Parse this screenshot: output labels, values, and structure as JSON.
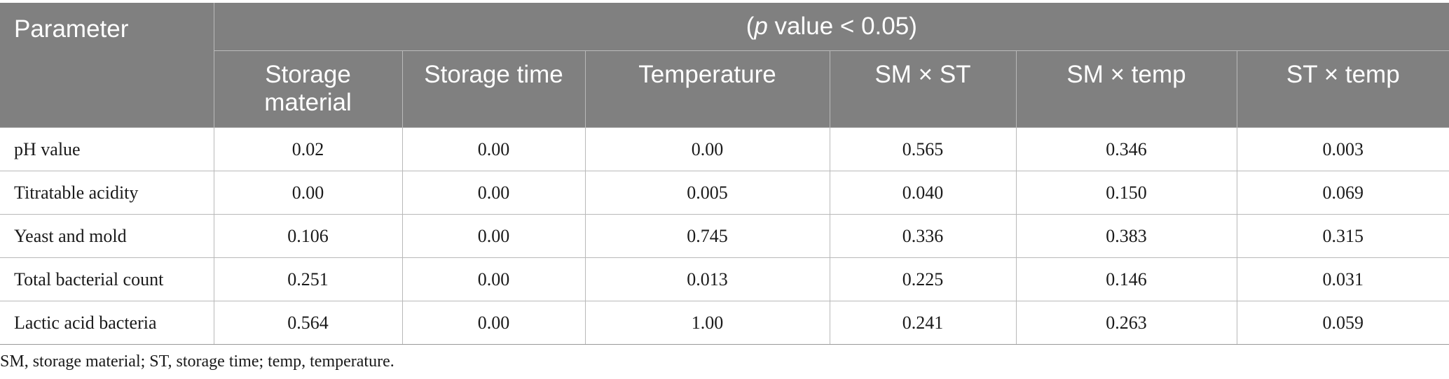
{
  "table": {
    "param_header": "Parameter",
    "group_header_pre": "(",
    "group_header_italic": "p",
    "group_header_post": " value < 0.05)",
    "columns": [
      "Storage material",
      "Storage time",
      "Temperature",
      "SM × ST",
      "SM × temp",
      "ST × temp"
    ],
    "rows": [
      {
        "parameter": "pH value",
        "values": [
          "0.02",
          "0.00",
          "0.00",
          "0.565",
          "0.346",
          "0.003"
        ]
      },
      {
        "parameter": "Titratable acidity",
        "values": [
          "0.00",
          "0.00",
          "0.005",
          "0.040",
          "0.150",
          "0.069"
        ]
      },
      {
        "parameter": "Yeast and mold",
        "values": [
          "0.106",
          "0.00",
          "0.745",
          "0.336",
          "0.383",
          "0.315"
        ]
      },
      {
        "parameter": "Total bacterial count",
        "values": [
          "0.251",
          "0.00",
          "0.013",
          "0.225",
          "0.146",
          "0.031"
        ]
      },
      {
        "parameter": "Lactic acid bacteria",
        "values": [
          "0.564",
          "0.00",
          "1.00",
          "0.241",
          "0.263",
          "0.059"
        ]
      }
    ]
  },
  "footnote": "SM, storage material; ST, storage time; temp, temperature.",
  "colors": {
    "header_background": "#808080",
    "header_text": "#ffffff",
    "grid_line": "#b9b9b9"
  }
}
